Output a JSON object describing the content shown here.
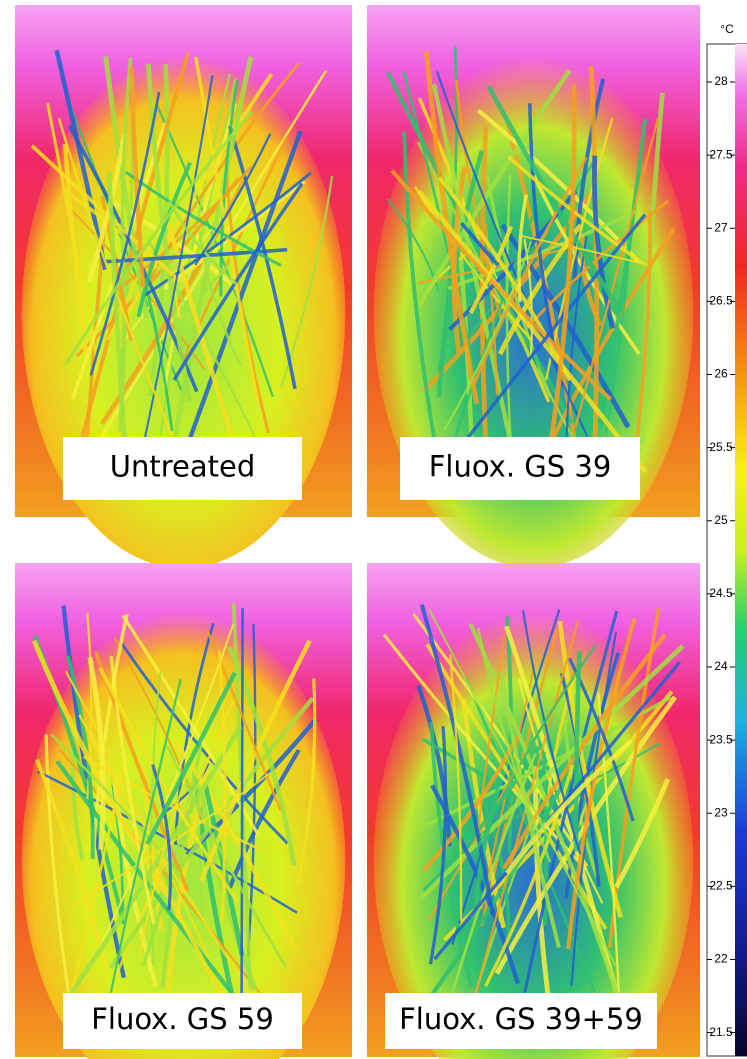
{
  "panels": [
    {
      "label": "Untreated"
    },
    {
      "label": "Fluox. GS 39"
    },
    {
      "label": "Fluox. GS 59"
    },
    {
      "label": "Fluox. GS 39+59"
    }
  ],
  "colorbar": {
    "unit": "°C",
    "lim": [
      21.34,
      28.26
    ],
    "ticks": [
      28,
      27.5,
      27,
      26.5,
      26,
      25.5,
      25,
      24.5,
      24,
      23.5,
      23,
      22.5,
      22,
      21.5
    ]
  }
}
